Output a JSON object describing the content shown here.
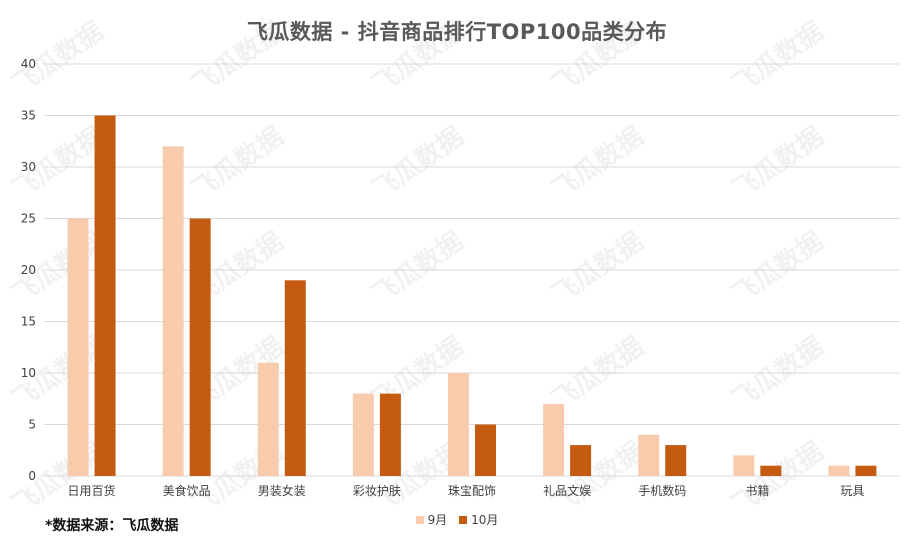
{
  "chart_data": {
    "type": "bar",
    "title": "飞瓜数据 - 抖音商品排行TOP100品类分布",
    "categories": [
      "日用百货",
      "美食饮品",
      "男装女装",
      "彩妆护肤",
      "珠宝配饰",
      "礼品文娱",
      "手机数码",
      "书籍",
      "玩具"
    ],
    "series": [
      {
        "name": "9月",
        "values": [
          25,
          32,
          11,
          8,
          10,
          7,
          4,
          2,
          1
        ],
        "color": "#F8CBAD"
      },
      {
        "name": "10月",
        "values": [
          35,
          25,
          19,
          8,
          5,
          3,
          3,
          1,
          1
        ],
        "color": "#C55A11"
      }
    ],
    "ylim": [
      0,
      40
    ],
    "yticks": [
      0,
      5,
      10,
      15,
      20,
      25,
      30,
      35,
      40
    ],
    "grid": true,
    "legend_position": "bottom",
    "xlabel": "",
    "ylabel": ""
  },
  "source_note": "*数据来源：飞瓜数据",
  "watermark": "飞瓜数据"
}
